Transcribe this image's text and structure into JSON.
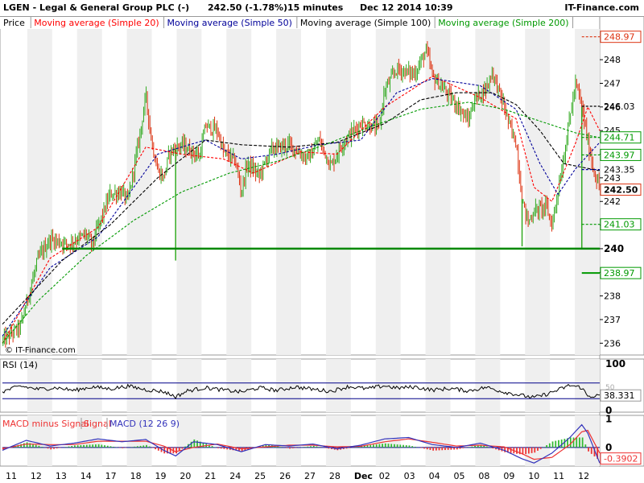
{
  "header": {
    "symbol_title": "LGEN - Legal & General Group PLC (-)",
    "quote": "242.50 (-1.78%)",
    "interval": "15 minutes",
    "datetime": "Dec 12 2014 10:39",
    "brand": "IT-Finance.com"
  },
  "watermark": "© IT-Finance.com",
  "colors": {
    "up": "#33aa22",
    "down": "#dd3311",
    "ma20": "#ff0000",
    "ma50": "#000099",
    "ma100": "#000000",
    "ma200": "#009900",
    "support": "#008800",
    "rsi": "#000000",
    "macd": "#3333bb",
    "signal": "#ee3333",
    "hist_pos": "#33bb33",
    "hist_neg": "#ee3333",
    "ref_line": "#000088"
  },
  "chart_data": [
    {
      "type": "candlestick",
      "legend": [
        {
          "key": "price",
          "label": "Price"
        },
        {
          "key": "ma20",
          "label": "Moving average (Simple 20)"
        },
        {
          "key": "ma50",
          "label": "Moving average (Simple 50)"
        },
        {
          "key": "ma100",
          "label": "Moving average (Simple 100)"
        },
        {
          "key": "ma200",
          "label": "Moving average (Simple 200)"
        }
      ],
      "ylim": [
        235.5,
        249.3
      ],
      "y_ticks": [
        236,
        237,
        238,
        239,
        240,
        241,
        242,
        243,
        244,
        245,
        246,
        247,
        248
      ],
      "x_labels": [
        "11",
        "12",
        "13",
        "14",
        "17",
        "18",
        "19",
        "20",
        "21",
        "24",
        "25",
        "26",
        "27",
        "28",
        "Dec",
        "02",
        "03",
        "04",
        "05",
        "08",
        "09",
        "10",
        "11",
        "12"
      ],
      "price_path": [
        [
          0,
          236.1
        ],
        [
          3,
          236.7
        ],
        [
          6,
          239.6
        ],
        [
          8,
          240.4
        ],
        [
          11,
          240.2
        ],
        [
          14,
          240.6
        ],
        [
          15,
          240.2
        ],
        [
          18,
          242.3
        ],
        [
          20,
          242.4
        ],
        [
          21,
          242.0
        ],
        [
          23,
          244.8
        ],
        [
          24,
          246.5
        ],
        [
          25,
          244.5
        ],
        [
          26,
          243.3
        ],
        [
          27,
          243.0
        ],
        [
          28,
          244.1
        ],
        [
          30,
          244.4
        ],
        [
          33,
          243.9
        ],
        [
          34,
          245.2
        ],
        [
          36,
          245.0
        ],
        [
          37,
          244.1
        ],
        [
          39,
          243.7
        ],
        [
          40,
          242.4
        ],
        [
          41,
          243.6
        ],
        [
          43,
          243.1
        ],
        [
          45,
          244.2
        ],
        [
          48,
          244.4
        ],
        [
          51,
          243.8
        ],
        [
          52,
          244.1
        ],
        [
          53,
          244.6
        ],
        [
          55,
          243.5
        ],
        [
          57,
          244.5
        ],
        [
          60,
          245.3
        ],
        [
          63,
          245.1
        ],
        [
          64,
          246.7
        ],
        [
          66,
          247.6
        ],
        [
          69,
          247.4
        ],
        [
          71,
          248.4
        ],
        [
          72,
          247.3
        ],
        [
          75,
          246.4
        ],
        [
          76,
          246.1
        ],
        [
          78,
          245.4
        ],
        [
          79,
          246.3
        ],
        [
          81,
          246.8
        ],
        [
          82,
          247.5
        ],
        [
          84,
          246.0
        ],
        [
          85,
          245.1
        ],
        [
          86,
          244.5
        ],
        [
          87,
          242.1
        ],
        [
          88,
          241.1
        ],
        [
          89,
          241.6
        ],
        [
          91,
          241.8
        ],
        [
          92,
          241.0
        ],
        [
          94,
          243.9
        ],
        [
          95,
          245.6
        ],
        [
          96,
          247.0
        ],
        [
          97,
          246.0
        ],
        [
          98,
          244.5
        ],
        [
          99,
          243.3
        ],
        [
          100,
          242.5
        ]
      ],
      "price_events": [
        [
          29,
          239.5
        ],
        [
          97,
          240.0
        ],
        [
          87,
          240.1
        ]
      ],
      "series": [
        {
          "name": "Moving average (Simple 20)",
          "key": "ma20",
          "points": [
            [
              0,
              236.0
            ],
            [
              8,
              239.6
            ],
            [
              16,
              240.9
            ],
            [
              24,
              244.3
            ],
            [
              30,
              244.0
            ],
            [
              37,
              243.8
            ],
            [
              42,
              243.2
            ],
            [
              50,
              244.1
            ],
            [
              56,
              244.0
            ],
            [
              64,
              246.0
            ],
            [
              72,
              247.3
            ],
            [
              80,
              246.4
            ],
            [
              86,
              245.5
            ],
            [
              89,
              242.6
            ],
            [
              92,
              242.0
            ],
            [
              96,
              244.5
            ],
            [
              98,
              246.0
            ],
            [
              100,
              245.0
            ]
          ]
        },
        {
          "name": "Moving average (Simple 50)",
          "key": "ma50",
          "points": [
            [
              0,
              236.3
            ],
            [
              8,
              239.2
            ],
            [
              16,
              240.5
            ],
            [
              26,
              244.0
            ],
            [
              34,
              244.6
            ],
            [
              40,
              243.8
            ],
            [
              46,
              244.0
            ],
            [
              53,
              244.4
            ],
            [
              60,
              244.6
            ],
            [
              66,
              246.6
            ],
            [
              72,
              247.2
            ],
            [
              80,
              246.9
            ],
            [
              86,
              245.9
            ],
            [
              90,
              243.6
            ],
            [
              93,
              242.3
            ],
            [
              96,
              243.4
            ],
            [
              100,
              244.5
            ]
          ]
        },
        {
          "name": "Moving average (Simple 100)",
          "key": "ma100",
          "points": [
            [
              0,
              236.8
            ],
            [
              10,
              239.5
            ],
            [
              18,
              241.0
            ],
            [
              26,
              243.0
            ],
            [
              34,
              244.6
            ],
            [
              40,
              244.4
            ],
            [
              48,
              244.3
            ],
            [
              56,
              244.5
            ],
            [
              64,
              245.3
            ],
            [
              70,
              246.3
            ],
            [
              76,
              246.6
            ],
            [
              82,
              246.6
            ],
            [
              86,
              246.1
            ],
            [
              90,
              245.0
            ],
            [
              94,
              243.6
            ],
            [
              98,
              243.4
            ],
            [
              100,
              243.3
            ]
          ]
        },
        {
          "name": "Moving average (Simple 200)",
          "key": "ma200",
          "points": [
            [
              0,
              236.0
            ],
            [
              6,
              237.8
            ],
            [
              14,
              239.7
            ],
            [
              22,
              241.2
            ],
            [
              30,
              242.4
            ],
            [
              38,
              243.2
            ],
            [
              46,
              243.7
            ],
            [
              54,
              244.4
            ],
            [
              62,
              245.2
            ],
            [
              70,
              245.9
            ],
            [
              78,
              246.2
            ],
            [
              84,
              245.9
            ],
            [
              90,
              245.4
            ],
            [
              96,
              244.9
            ],
            [
              100,
              244.7
            ]
          ]
        }
      ],
      "support_line": 240,
      "price_labels": [
        {
          "value": 248.97,
          "label": "248.97",
          "color": "#dd3311",
          "style": "dashed",
          "boxed": true
        },
        {
          "value": 246.03,
          "label": "246.03",
          "color": "#000000",
          "style": "dashed",
          "boxed": false
        },
        {
          "value": 244.71,
          "label": "244.71",
          "color": "#009900",
          "style": "dashed",
          "boxed": true
        },
        {
          "value": 243.97,
          "label": "243.97",
          "color": "#009900",
          "style": "dashed",
          "boxed": true
        },
        {
          "value": 243.35,
          "label": "243.35",
          "color": "#000099",
          "style": "dashed",
          "boxed": false
        },
        {
          "value": 242.5,
          "label": "242.50",
          "color": "#dd3311",
          "style": "none",
          "boxed": true
        },
        {
          "value": 241.03,
          "label": "241.03",
          "color": "#009900",
          "style": "dashed",
          "boxed": true
        },
        {
          "value": 238.97,
          "label": "238.97",
          "color": "#009900",
          "style": "solid",
          "boxed": true
        }
      ]
    },
    {
      "type": "line",
      "title": "RSI (14)",
      "ylim": [
        0,
        100
      ],
      "y_ticks": [
        0,
        100
      ],
      "y_ticks_extra": [
        "50"
      ],
      "ref_lines": [
        70,
        30
      ],
      "current_label": "38.331",
      "points": [
        [
          0,
          48
        ],
        [
          3,
          62
        ],
        [
          6,
          54
        ],
        [
          9,
          58
        ],
        [
          12,
          51
        ],
        [
          15,
          60
        ],
        [
          18,
          55
        ],
        [
          21,
          62
        ],
        [
          24,
          53
        ],
        [
          27,
          48
        ],
        [
          29,
          35
        ],
        [
          31,
          50
        ],
        [
          34,
          58
        ],
        [
          37,
          52
        ],
        [
          40,
          47
        ],
        [
          43,
          58
        ],
        [
          46,
          51
        ],
        [
          49,
          60
        ],
        [
          52,
          54
        ],
        [
          55,
          49
        ],
        [
          58,
          61
        ],
        [
          61,
          55
        ],
        [
          64,
          63
        ],
        [
          66,
          57
        ],
        [
          69,
          60
        ],
        [
          72,
          52
        ],
        [
          75,
          56
        ],
        [
          78,
          50
        ],
        [
          81,
          59
        ],
        [
          84,
          47
        ],
        [
          87,
          38
        ],
        [
          89,
          33
        ],
        [
          91,
          41
        ],
        [
          93,
          52
        ],
        [
          95,
          64
        ],
        [
          97,
          58
        ],
        [
          98,
          36
        ],
        [
          100,
          38
        ]
      ]
    },
    {
      "type": "bar+line",
      "title_hist": "MACD minus Signal",
      "title_signal": "Signal",
      "title_macd": "MACD (12 26 9)",
      "ylim": [
        -0.6,
        1.1
      ],
      "y_ticks": [
        1,
        0
      ],
      "current_label": "-0.3902",
      "macd": [
        [
          0,
          -0.1
        ],
        [
          4,
          0.25
        ],
        [
          8,
          0.05
        ],
        [
          12,
          0.15
        ],
        [
          16,
          0.3
        ],
        [
          20,
          0.2
        ],
        [
          24,
          0.28
        ],
        [
          27,
          -0.1
        ],
        [
          29,
          -0.3
        ],
        [
          32,
          0.2
        ],
        [
          36,
          0.1
        ],
        [
          40,
          -0.15
        ],
        [
          44,
          0.1
        ],
        [
          48,
          0.05
        ],
        [
          52,
          0.12
        ],
        [
          56,
          -0.05
        ],
        [
          60,
          0.08
        ],
        [
          64,
          0.3
        ],
        [
          68,
          0.35
        ],
        [
          72,
          0.1
        ],
        [
          76,
          0.0
        ],
        [
          80,
          0.15
        ],
        [
          84,
          -0.1
        ],
        [
          87,
          -0.4
        ],
        [
          89,
          -0.55
        ],
        [
          92,
          -0.2
        ],
        [
          95,
          0.35
        ],
        [
          97,
          0.8
        ],
        [
          98,
          0.5
        ],
        [
          100,
          -0.55
        ]
      ],
      "signal": [
        [
          0,
          -0.05
        ],
        [
          4,
          0.12
        ],
        [
          8,
          0.1
        ],
        [
          12,
          0.1
        ],
        [
          16,
          0.22
        ],
        [
          20,
          0.22
        ],
        [
          24,
          0.22
        ],
        [
          27,
          0.05
        ],
        [
          29,
          -0.15
        ],
        [
          32,
          0.0
        ],
        [
          36,
          0.12
        ],
        [
          40,
          -0.05
        ],
        [
          44,
          0.02
        ],
        [
          48,
          0.08
        ],
        [
          52,
          0.08
        ],
        [
          56,
          0.02
        ],
        [
          60,
          0.04
        ],
        [
          64,
          0.2
        ],
        [
          68,
          0.3
        ],
        [
          72,
          0.18
        ],
        [
          76,
          0.05
        ],
        [
          80,
          0.08
        ],
        [
          84,
          0.02
        ],
        [
          87,
          -0.22
        ],
        [
          89,
          -0.42
        ],
        [
          92,
          -0.35
        ],
        [
          95,
          0.1
        ],
        [
          97,
          0.55
        ],
        [
          98,
          0.6
        ],
        [
          100,
          -0.2
        ]
      ]
    }
  ]
}
